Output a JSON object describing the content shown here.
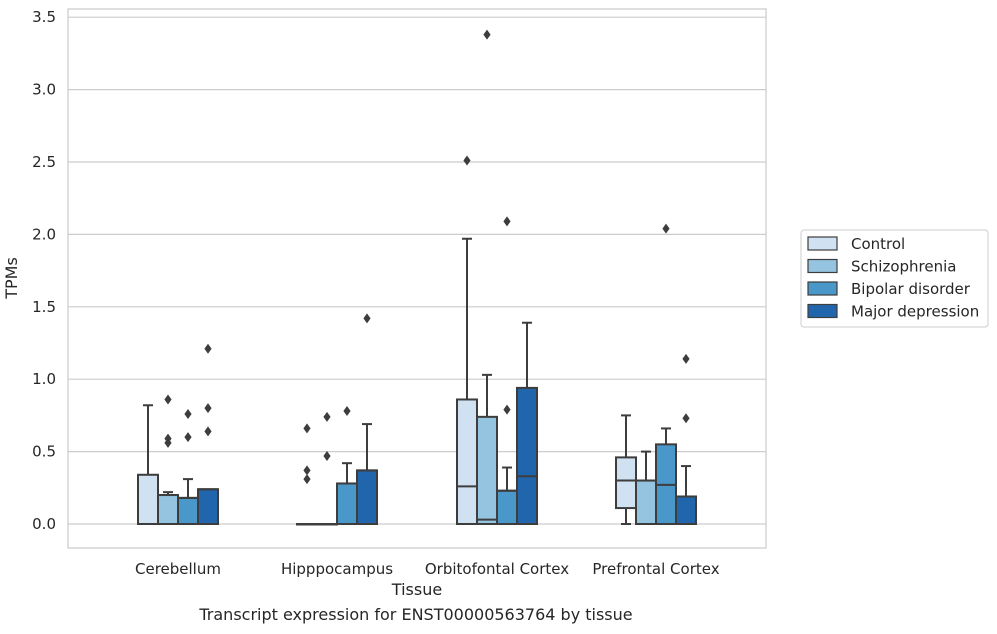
{
  "chart_data": {
    "type": "box",
    "caption": "Transcript expression for ENST00000563764 by tissue",
    "xlabel": "Tissue",
    "ylabel": "TPMs",
    "ylim": [
      -0.17,
      3.56
    ],
    "yticks": [
      "0.0",
      "0.5",
      "1.0",
      "1.5",
      "2.0",
      "2.5",
      "3.0",
      "3.5"
    ],
    "ytick_values": [
      0,
      0.5,
      1.0,
      1.5,
      2.0,
      2.5,
      3.0,
      3.5
    ],
    "grid": "horizontal",
    "legend_position": "right-outside",
    "categories": [
      "Cerebellum",
      "Hipppocampus",
      "Orbitofontal Cortex",
      "Prefrontal Cortex"
    ],
    "series": [
      {
        "name": "Control",
        "color": "#d0e1f2",
        "boxes": [
          {
            "q1": 0.0,
            "median": 0.0,
            "q3": 0.34,
            "whisker_low": 0.0,
            "whisker_high": 0.82,
            "outliers": []
          },
          {
            "q1": 0.0,
            "median": 0.0,
            "q3": 0.0,
            "whisker_low": 0.0,
            "whisker_high": 0.0,
            "outliers": [
              0.31,
              0.37,
              0.66
            ]
          },
          {
            "q1": 0.0,
            "median": 0.26,
            "q3": 0.86,
            "whisker_low": 0.0,
            "whisker_high": 1.97,
            "outliers": [
              2.51
            ]
          },
          {
            "q1": 0.11,
            "median": 0.3,
            "q3": 0.46,
            "whisker_low": 0.0,
            "whisker_high": 0.75,
            "outliers": []
          }
        ]
      },
      {
        "name": "Schizophrenia",
        "color": "#94c4df",
        "boxes": [
          {
            "q1": 0.0,
            "median": 0.2,
            "q3": 0.2,
            "whisker_low": 0.0,
            "whisker_high": 0.22,
            "outliers": [
              0.56,
              0.59,
              0.86
            ]
          },
          {
            "q1": 0.0,
            "median": 0.0,
            "q3": 0.0,
            "whisker_low": 0.0,
            "whisker_high": 0.0,
            "outliers": [
              0.47,
              0.74
            ]
          },
          {
            "q1": 0.0,
            "median": 0.03,
            "q3": 0.74,
            "whisker_low": 0.0,
            "whisker_high": 1.03,
            "outliers": [
              3.38
            ]
          },
          {
            "q1": 0.0,
            "median": 0.3,
            "q3": 0.3,
            "whisker_low": 0.0,
            "whisker_high": 0.5,
            "outliers": []
          }
        ]
      },
      {
        "name": "Bipolar disorder",
        "color": "#4a98c9",
        "boxes": [
          {
            "q1": 0.0,
            "median": 0.18,
            "q3": 0.18,
            "whisker_low": 0.0,
            "whisker_high": 0.31,
            "outliers": [
              0.6,
              0.76
            ]
          },
          {
            "q1": 0.0,
            "median": 0.28,
            "q3": 0.28,
            "whisker_low": 0.0,
            "whisker_high": 0.42,
            "outliers": [
              0.78
            ]
          },
          {
            "q1": 0.0,
            "median": 0.23,
            "q3": 0.23,
            "whisker_low": 0.0,
            "whisker_high": 0.39,
            "outliers": [
              0.79,
              2.09
            ]
          },
          {
            "q1": 0.0,
            "median": 0.27,
            "q3": 0.55,
            "whisker_low": 0.0,
            "whisker_high": 0.66,
            "outliers": [
              2.04
            ]
          }
        ]
      },
      {
        "name": "Major depression",
        "color": "#2166ac",
        "boxes": [
          {
            "q1": 0.0,
            "median": 0.24,
            "q3": 0.24,
            "whisker_low": 0.0,
            "whisker_high": 0.24,
            "outliers": [
              0.64,
              0.8,
              1.21
            ]
          },
          {
            "q1": 0.0,
            "median": 0.37,
            "q3": 0.37,
            "whisker_low": 0.0,
            "whisker_high": 0.69,
            "outliers": [
              1.42
            ]
          },
          {
            "q1": 0.0,
            "median": 0.33,
            "q3": 0.94,
            "whisker_low": 0.0,
            "whisker_high": 1.39,
            "outliers": []
          },
          {
            "q1": 0.0,
            "median": 0.19,
            "q3": 0.19,
            "whisker_low": 0.0,
            "whisker_high": 0.4,
            "outliers": [
              0.73,
              1.14
            ]
          }
        ]
      }
    ]
  }
}
